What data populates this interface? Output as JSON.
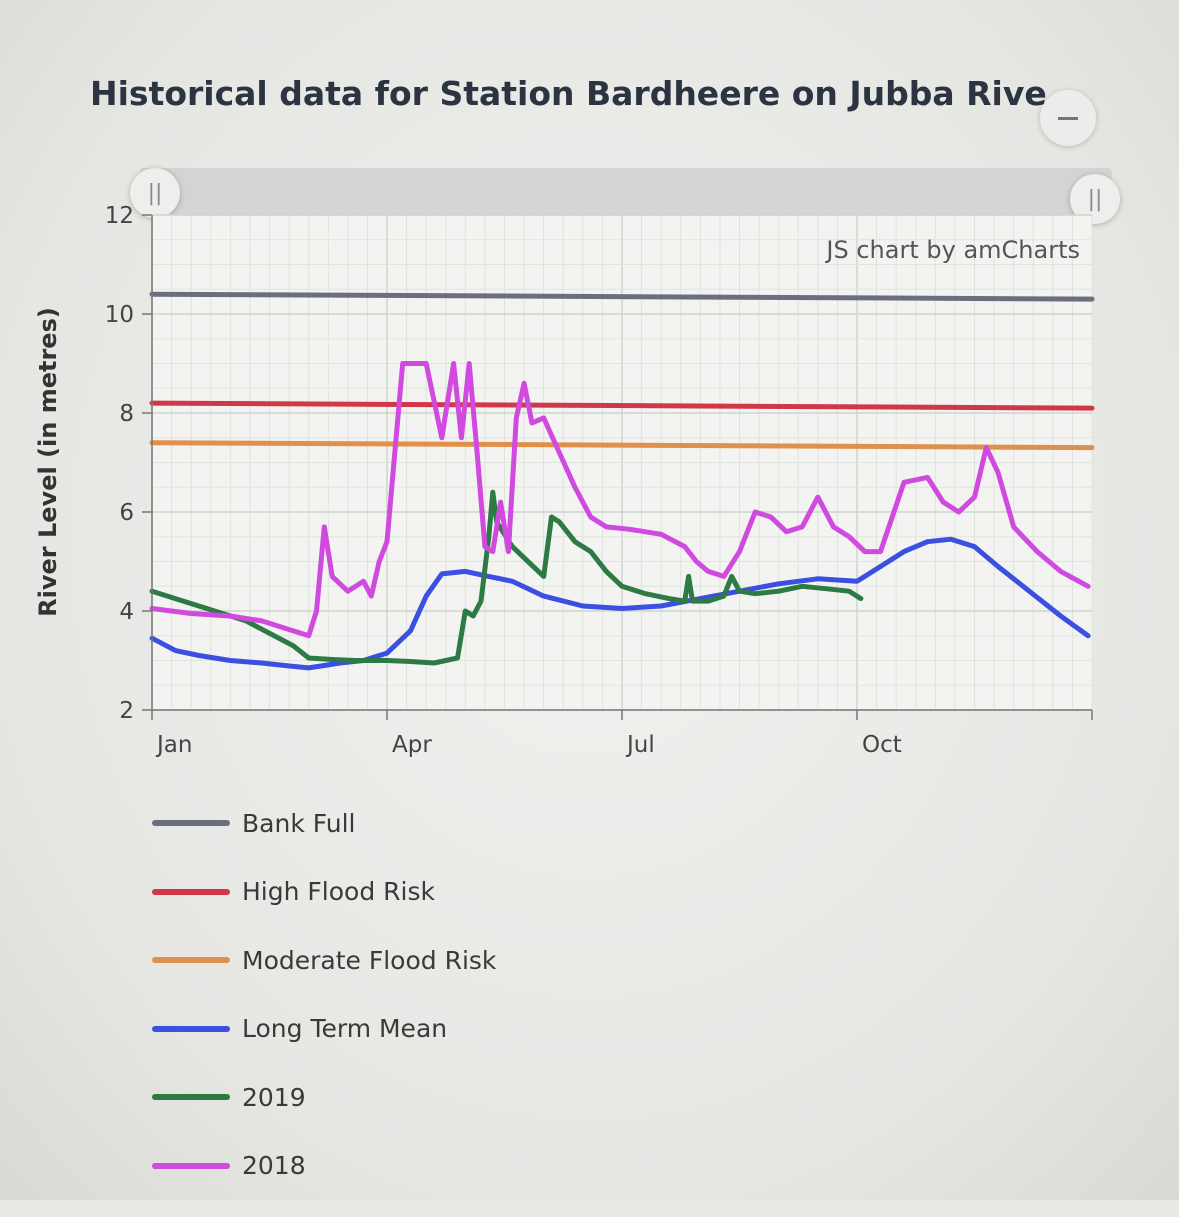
{
  "title": "Historical data for Station Bardheere on Jubba Rive",
  "credit": "JS chart by amCharts",
  "scrollbar": {
    "left_grip_icon": "||",
    "right_grip_icon": "||"
  },
  "chart_data": {
    "type": "line",
    "title": "Historical data for Station Bardheere on Jubba Rive",
    "xlabel": "",
    "ylabel": "River Level (in metres)",
    "ylim": [
      2,
      12
    ],
    "xlim": [
      1,
      13
    ],
    "x_unit": "month",
    "yticks": [
      2,
      4,
      6,
      8,
      10,
      12
    ],
    "xticks": [
      {
        "x": 1,
        "label": "Jan"
      },
      {
        "x": 4,
        "label": "Apr"
      },
      {
        "x": 7,
        "label": "Jul"
      },
      {
        "x": 10,
        "label": "Oct"
      }
    ],
    "grid": true,
    "legend_position": "bottom",
    "series": [
      {
        "name": "Bank Full",
        "color": "#6b6f7d",
        "x": [
          1,
          13
        ],
        "y": [
          10.4,
          10.3
        ]
      },
      {
        "name": "High Flood Risk",
        "color": "#d0384a",
        "x": [
          1,
          13
        ],
        "y": [
          8.2,
          8.1
        ]
      },
      {
        "name": "Moderate Flood Risk",
        "color": "#e0904a",
        "x": [
          1,
          13
        ],
        "y": [
          7.4,
          7.3
        ]
      },
      {
        "name": "Long Term Mean",
        "color": "#3b4fe0",
        "x": [
          1,
          1.3,
          1.6,
          2.0,
          2.4,
          2.8,
          3.0,
          3.2,
          3.4,
          3.7,
          4.0,
          4.3,
          4.5,
          4.7,
          5.0,
          5.3,
          5.6,
          6.0,
          6.5,
          7.0,
          7.5,
          8.0,
          8.5,
          9.0,
          9.5,
          10.0,
          10.3,
          10.6,
          10.9,
          11.2,
          11.5,
          11.8,
          12.2,
          12.6,
          12.95
        ],
        "y": [
          3.45,
          3.2,
          3.1,
          3.0,
          2.95,
          2.88,
          2.85,
          2.9,
          2.95,
          3.0,
          3.15,
          3.6,
          4.3,
          4.75,
          4.8,
          4.7,
          4.6,
          4.3,
          4.1,
          4.05,
          4.1,
          4.25,
          4.4,
          4.55,
          4.65,
          4.6,
          4.9,
          5.2,
          5.4,
          5.45,
          5.3,
          4.9,
          4.4,
          3.9,
          3.5
        ]
      },
      {
        "name": "2019",
        "color": "#2e7a45",
        "x": [
          1,
          1.4,
          1.8,
          2.2,
          2.5,
          2.8,
          3.0,
          3.3,
          3.6,
          4.0,
          4.3,
          4.6,
          4.9,
          5.0,
          5.1,
          5.2,
          5.3,
          5.35,
          5.4,
          5.6,
          5.8,
          6.0,
          6.1,
          6.2,
          6.4,
          6.6,
          6.8,
          7.0,
          7.3,
          7.6,
          7.8,
          7.85,
          7.9,
          8.1,
          8.3,
          8.4,
          8.5,
          8.7,
          9.0,
          9.3,
          9.6,
          9.9,
          10.05
        ],
        "y": [
          4.4,
          4.2,
          4.0,
          3.8,
          3.55,
          3.3,
          3.05,
          3.02,
          3.0,
          3.0,
          2.98,
          2.95,
          3.05,
          4.0,
          3.9,
          4.2,
          5.5,
          6.4,
          5.8,
          5.3,
          5.0,
          4.7,
          5.9,
          5.8,
          5.4,
          5.2,
          4.8,
          4.5,
          4.35,
          4.25,
          4.2,
          4.7,
          4.2,
          4.2,
          4.3,
          4.7,
          4.4,
          4.35,
          4.4,
          4.5,
          4.45,
          4.4,
          4.25
        ]
      },
      {
        "name": "2018",
        "color": "#d04ae0",
        "x": [
          1,
          1.5,
          2.0,
          2.4,
          2.8,
          3.0,
          3.1,
          3.2,
          3.3,
          3.5,
          3.7,
          3.8,
          3.9,
          4.0,
          4.1,
          4.2,
          4.35,
          4.5,
          4.7,
          4.85,
          4.95,
          5.05,
          5.15,
          5.25,
          5.35,
          5.45,
          5.55,
          5.65,
          5.75,
          5.85,
          6.0,
          6.2,
          6.4,
          6.6,
          6.8,
          7.1,
          7.5,
          7.8,
          7.95,
          8.1,
          8.3,
          8.5,
          8.7,
          8.9,
          9.1,
          9.3,
          9.5,
          9.7,
          9.9,
          10.1,
          10.3,
          10.6,
          10.9,
          11.1,
          11.3,
          11.5,
          11.65,
          11.8,
          12.0,
          12.3,
          12.6,
          12.95
        ],
        "y": [
          4.05,
          3.95,
          3.9,
          3.8,
          3.6,
          3.5,
          4.0,
          5.7,
          4.7,
          4.4,
          4.6,
          4.3,
          5.0,
          5.4,
          7.2,
          9.0,
          9.0,
          9.0,
          7.5,
          9.0,
          7.5,
          9.0,
          7.2,
          5.3,
          5.2,
          6.2,
          5.2,
          7.9,
          8.6,
          7.8,
          7.9,
          7.2,
          6.5,
          5.9,
          5.7,
          5.65,
          5.55,
          5.3,
          5.0,
          4.8,
          4.7,
          5.2,
          6.0,
          5.9,
          5.6,
          5.7,
          6.3,
          5.7,
          5.5,
          5.2,
          5.2,
          6.6,
          6.7,
          6.2,
          6.0,
          6.3,
          7.3,
          6.8,
          5.7,
          5.2,
          4.8,
          4.5
        ]
      }
    ]
  }
}
